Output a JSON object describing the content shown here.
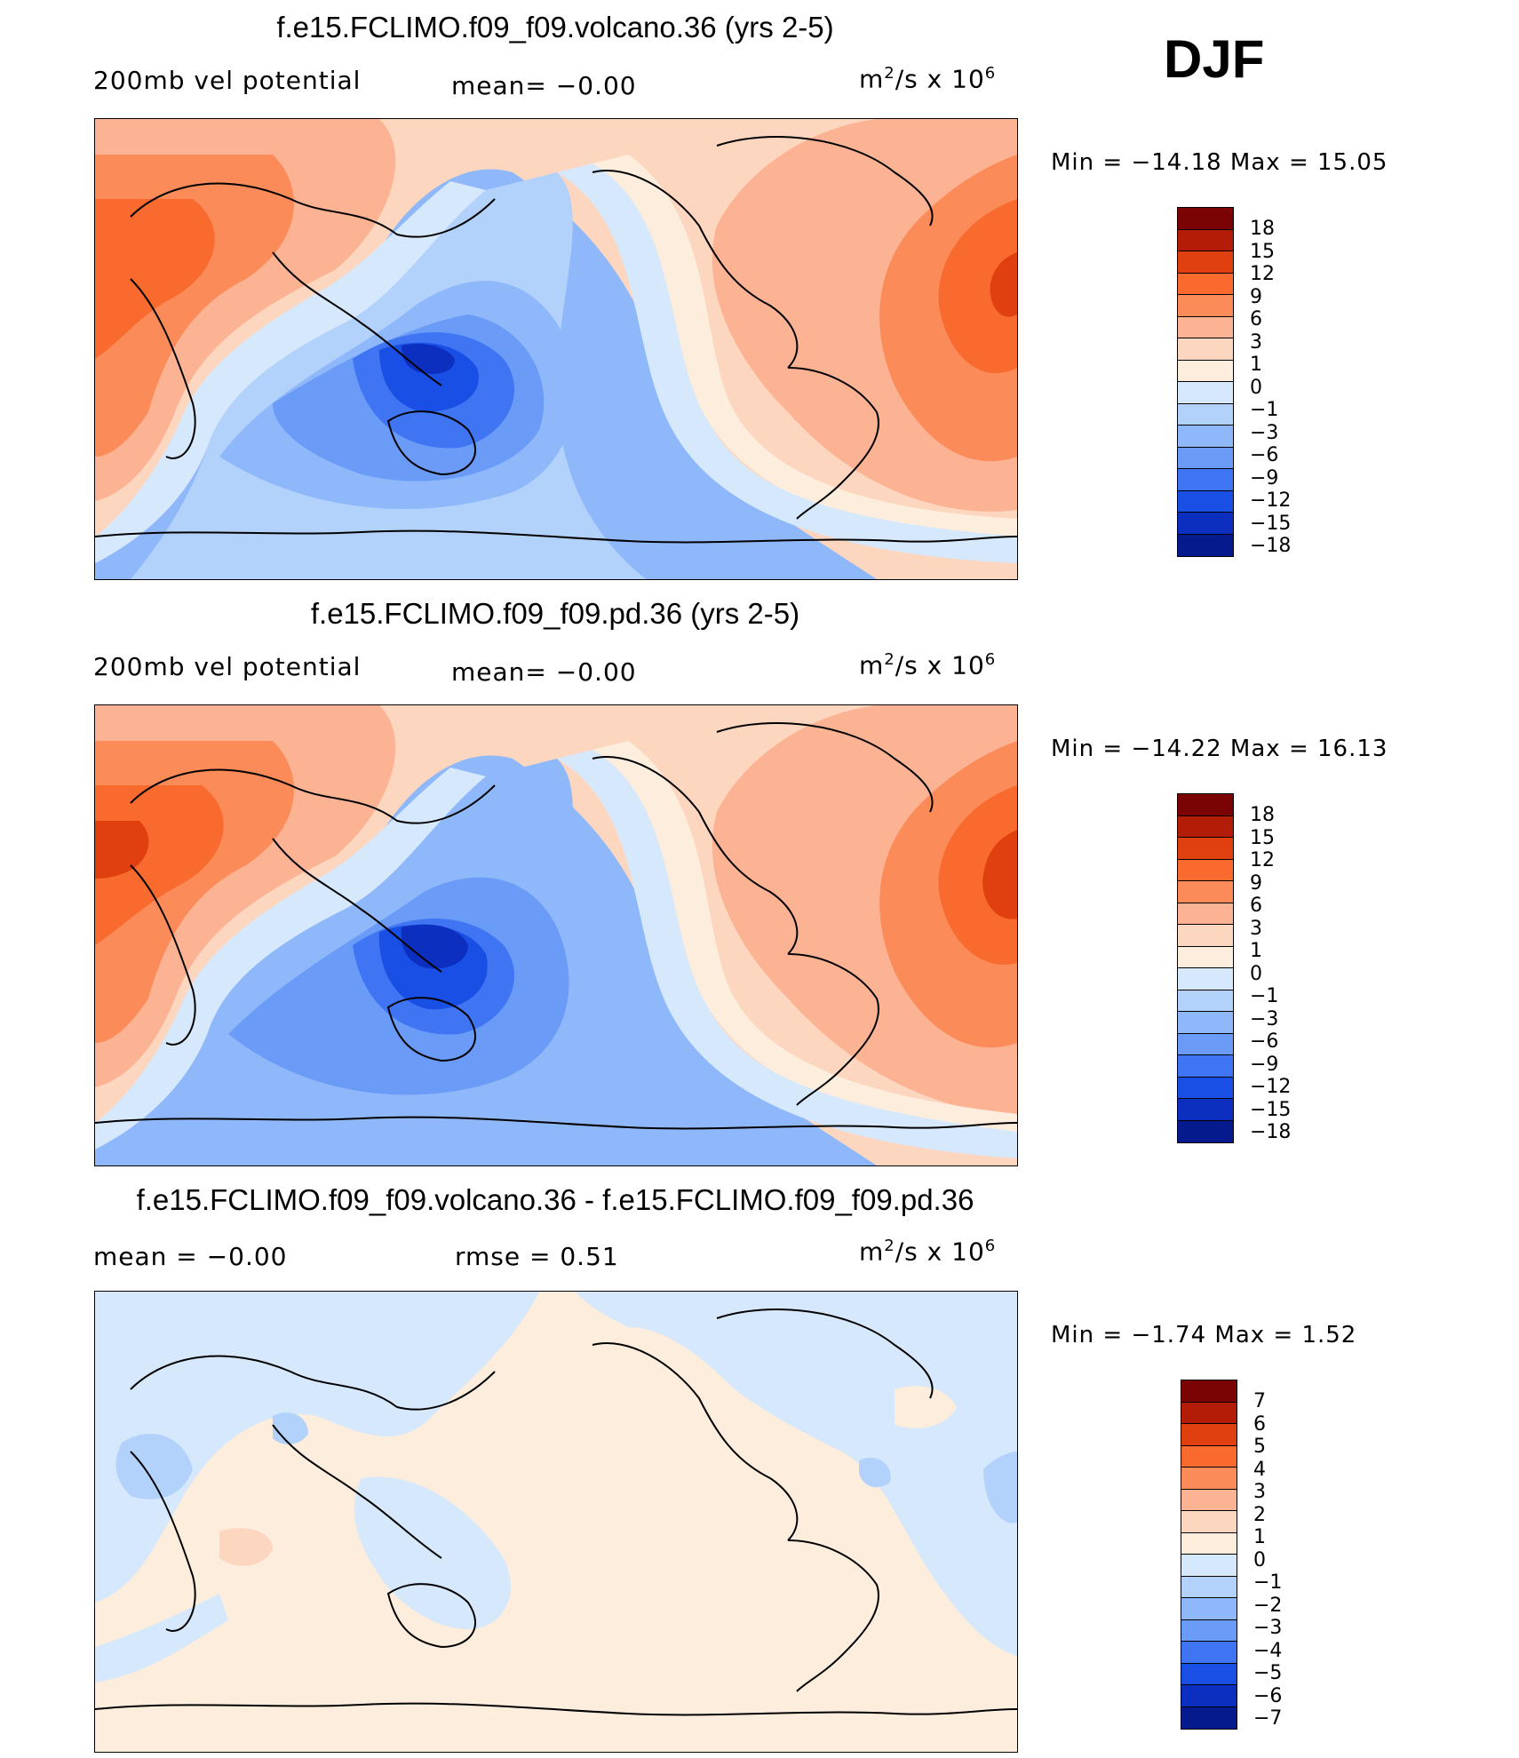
{
  "season": "DJF",
  "panels": [
    {
      "title": "f.e15.FCLIMO.f09_f09.volcano.36 (yrs 2-5)",
      "left_label": "200mb  vel  potential",
      "mid_label": "mean=   −0.00",
      "units_base": "m",
      "units_sup1": "2",
      "units_mid": "/s  x  10",
      "units_sup2": "6",
      "minmax": "Min  =  −14.18  Max  =    15.05",
      "scale": "full",
      "map": {
        "bg": "#aecdfb",
        "blobs": [
          {
            "id": "warm-west",
            "fill": "#fda77f",
            "shape": "west"
          },
          {
            "id": "warm-east",
            "fill": "#fda77f",
            "shape": "east"
          }
        ]
      }
    },
    {
      "title": "f.e15.FCLIMO.f09_f09.pd.36 (yrs 2-5)",
      "left_label": "200mb  vel  potential",
      "mid_label": "mean=   −0.00",
      "units_base": "m",
      "units_sup1": "2",
      "units_mid": "/s  x  10",
      "units_sup2": "6",
      "minmax": "Min  =  −14.22  Max  =    16.13",
      "scale": "full"
    },
    {
      "title": "f.e15.FCLIMO.f09_f09.volcano.36 - f.e15.FCLIMO.f09_f09.pd.36",
      "left_label": "mean  =     −0.00",
      "mid_label": "rmse  =     0.51",
      "units_base": "m",
      "units_sup1": "2",
      "units_mid": "/s  x  10",
      "units_sup2": "6",
      "minmax": "Min  =    −1.74  Max  =     1.52",
      "scale": "diff"
    }
  ],
  "colorbars": {
    "full": {
      "colors": [
        "#7a0403",
        "#b31c06",
        "#e0400f",
        "#f86a2e",
        "#fb8c5a",
        "#fcb394",
        "#fdd6bf",
        "#fdeddc",
        "#d6e8fc",
        "#b3d2fb",
        "#8fb8fa",
        "#6a9bf6",
        "#3f75f2",
        "#1a4fe5",
        "#0c2fbf",
        "#051a8c"
      ],
      "labels": [
        "18",
        "15",
        "12",
        "9",
        "6",
        "3",
        "1",
        "0",
        "−1",
        "−3",
        "−6",
        "−9",
        "−12",
        "−15",
        "−18"
      ]
    },
    "diff": {
      "colors": [
        "#7a0403",
        "#b31c06",
        "#e0400f",
        "#f86a2e",
        "#fb8c5a",
        "#fcb394",
        "#fdd6bf",
        "#fdeddc",
        "#d6e8fc",
        "#b3d2fb",
        "#8fb8fa",
        "#6a9bf6",
        "#3f75f2",
        "#1a4fe5",
        "#0c2fbf",
        "#051a8c"
      ],
      "labels": [
        "7",
        "6",
        "5",
        "4",
        "3",
        "2",
        "1",
        "0",
        "−1",
        "−2",
        "−3",
        "−4",
        "−5",
        "−6",
        "−7"
      ]
    }
  }
}
